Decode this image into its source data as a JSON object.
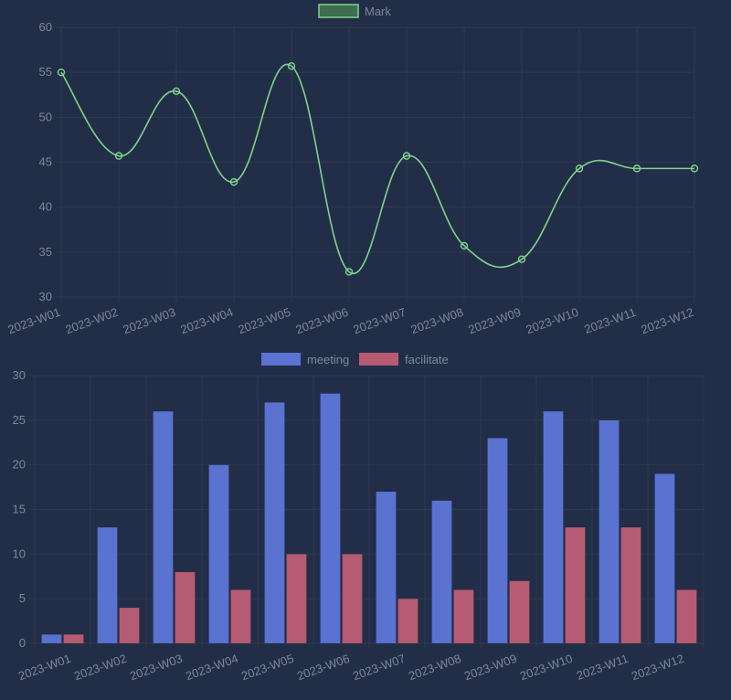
{
  "chart_data": [
    {
      "type": "line",
      "categories": [
        "2023-W01",
        "2023-W02",
        "2023-W03",
        "2023-W04",
        "2023-W05",
        "2023-W06",
        "2023-W07",
        "2023-W08",
        "2023-W09",
        "2023-W10",
        "2023-W11",
        "2023-W12"
      ],
      "series": [
        {
          "name": "Mark",
          "values": [
            55,
            45.7,
            52.9,
            42.8,
            55.7,
            32.8,
            45.7,
            35.7,
            34.2,
            44.3,
            44.3,
            44.3
          ]
        }
      ],
      "ylim": [
        30,
        60
      ],
      "yticks": [
        30,
        35,
        40,
        45,
        50,
        55,
        60
      ],
      "grid": true,
      "legend": "top-center",
      "colors": {
        "line": "#7fd38d",
        "legend_fill": "#3f6d50"
      }
    },
    {
      "type": "bar",
      "categories": [
        "2023-W01",
        "2023-W02",
        "2023-W03",
        "2023-W04",
        "2023-W05",
        "2023-W06",
        "2023-W07",
        "2023-W08",
        "2023-W09",
        "2023-W10",
        "2023-W11",
        "2023-W12"
      ],
      "series": [
        {
          "name": "meeting",
          "values": [
            1,
            13,
            26,
            20,
            27,
            28,
            17,
            16,
            23,
            26,
            25,
            19
          ]
        },
        {
          "name": "facilitate",
          "values": [
            1,
            4,
            8,
            6,
            10,
            10,
            5,
            6,
            7,
            13,
            13,
            6
          ]
        }
      ],
      "ylim": [
        0,
        30
      ],
      "yticks": [
        0,
        5,
        10,
        15,
        20,
        25,
        30
      ],
      "grid": true,
      "legend": "top-center",
      "colors": {
        "meeting": "#5a72d0",
        "facilitate": "#b55b73"
      }
    }
  ]
}
